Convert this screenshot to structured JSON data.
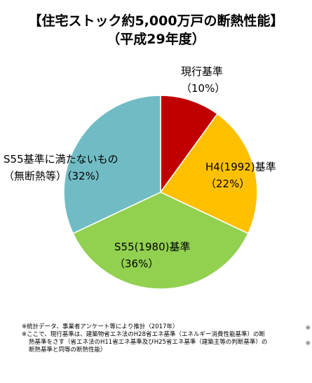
{
  "title": "【住宅ストック約5,000万戸の断熱性能】",
  "subtitle": "（平成29年度）",
  "chart_data": {
    "type": "pie",
    "slices": [
      {
        "label": "現行基準",
        "pct_label": "（10%）",
        "value": 10,
        "color": "#c00000"
      },
      {
        "label": "H4(1992)基準",
        "pct_label": "（22%）",
        "value": 22,
        "color": "#ffc000"
      },
      {
        "label": "S55(1980)基準",
        "pct_label": "（36%）",
        "value": 36,
        "color": "#92d050"
      },
      {
        "label": "S55基準に満たないもの",
        "pct_label": "（無断熱等）（32%）",
        "value": 32,
        "color": "#71bcc4"
      }
    ]
  },
  "notes": {
    "line1": "※統計データ、事業者アンケート等により推計（2017年）",
    "line2": "※ここで、現行基準は、建築物省エネ法のH28省エネ基準（エネルギー消費性能基準）の断",
    "line3": "熱基準をさす（省エネ法のH11省エネ基準及びH25省エネ基準（建築主等の判断基準）の",
    "line4": "断熱基準と同等の断熱性能）"
  },
  "edge_marks": [
    "※",
    "※"
  ]
}
